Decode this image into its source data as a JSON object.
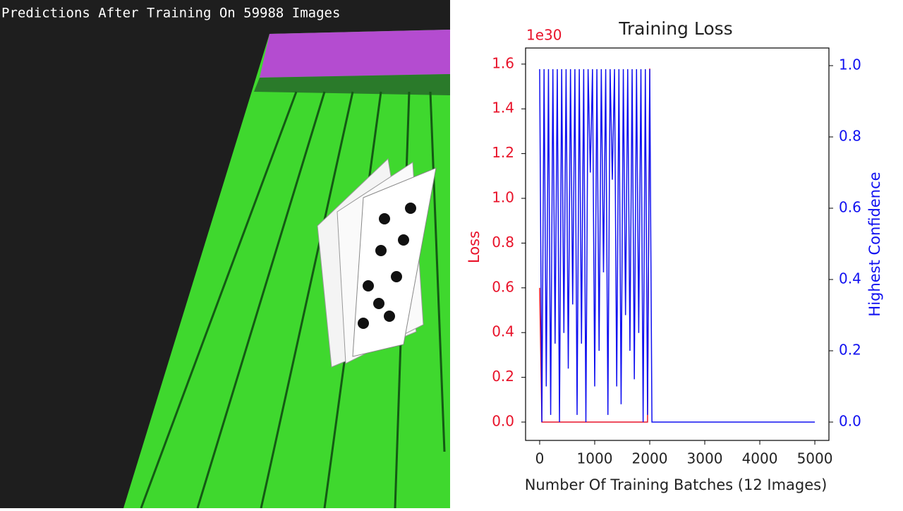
{
  "caption": "Predictions After Training On 59988 Images",
  "chart_data": {
    "type": "line",
    "title": "Training Loss",
    "offset_label": "1e30",
    "x_label": "Number Of Training Batches (12 Images)",
    "y_label": "Loss",
    "y2_label": "Highest Confidence",
    "x": [
      0,
      40,
      80,
      120,
      160,
      200,
      240,
      280,
      320,
      360,
      400,
      440,
      480,
      520,
      560,
      600,
      640,
      680,
      720,
      760,
      800,
      840,
      880,
      920,
      960,
      1000,
      1040,
      1080,
      1120,
      1160,
      1200,
      1240,
      1280,
      1320,
      1360,
      1400,
      1440,
      1480,
      1520,
      1560,
      1600,
      1640,
      1680,
      1720,
      1760,
      1800,
      1840,
      1880,
      1920,
      1960,
      2000,
      2040,
      5000
    ],
    "series": [
      {
        "name": "Loss",
        "color": "#e8132a",
        "values": [
          0.6,
          0,
          0,
          0,
          0,
          0,
          0,
          0,
          0,
          0,
          0,
          0,
          0,
          0,
          0,
          0,
          0,
          0,
          0,
          0,
          0,
          0,
          0,
          0,
          0,
          0,
          0,
          0,
          0,
          0,
          0,
          0,
          0,
          0,
          0,
          0,
          0,
          0,
          0,
          0,
          0,
          0,
          0,
          0,
          0,
          0,
          0,
          0,
          0,
          0,
          1.58,
          null,
          null
        ]
      },
      {
        "name": "Highest Confidence",
        "color": "#1010f0",
        "axis": "y2",
        "values": [
          0.99,
          0.0,
          0.99,
          0.1,
          0.99,
          0.02,
          0.99,
          0.22,
          0.99,
          0.0,
          0.99,
          0.25,
          0.99,
          0.15,
          0.99,
          0.33,
          0.99,
          0.02,
          0.99,
          0.22,
          0.99,
          0.0,
          0.99,
          0.7,
          0.99,
          0.1,
          0.99,
          0.2,
          0.99,
          0.42,
          0.99,
          0.02,
          0.99,
          0.68,
          0.99,
          0.1,
          0.99,
          0.05,
          0.99,
          0.3,
          0.99,
          0.2,
          0.99,
          0.12,
          0.99,
          0.25,
          0.99,
          0.0,
          0.99,
          0.02,
          0.99,
          0,
          0
        ]
      }
    ],
    "xlim": [
      -256,
      5256
    ],
    "xticks": [
      0,
      1000,
      2000,
      3000,
      4000,
      5000
    ],
    "ylim": [
      -0.082,
      1.672
    ],
    "yticks": [
      {
        "value": 0,
        "label": "0.0"
      },
      {
        "value": 0.2,
        "label": "0.2"
      },
      {
        "value": 0.4,
        "label": "0.4"
      },
      {
        "value": 0.6,
        "label": "0.6"
      },
      {
        "value": 0.8,
        "label": "0.8"
      },
      {
        "value": 1,
        "label": "1.0"
      },
      {
        "value": 1.2,
        "label": "1.2"
      },
      {
        "value": 1.4,
        "label": "1.4"
      },
      {
        "value": 1.6,
        "label": "1.6"
      }
    ],
    "y2lim": [
      -0.0515,
      1.0495
    ],
    "y2ticks": [
      {
        "value": 0,
        "label": "0.0"
      },
      {
        "value": 0.2,
        "label": "0.2"
      },
      {
        "value": 0.4,
        "label": "0.4"
      },
      {
        "value": 0.6,
        "label": "0.6"
      },
      {
        "value": 0.8,
        "label": "0.8"
      },
      {
        "value": 1,
        "label": "1.0"
      }
    ]
  }
}
